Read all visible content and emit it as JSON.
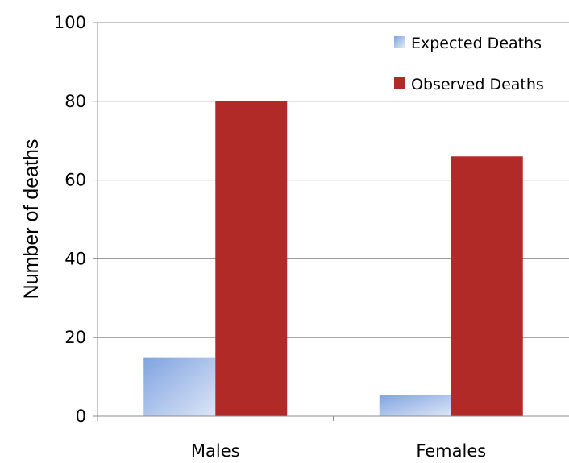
{
  "chart_data": {
    "type": "bar",
    "ylabel": "Number of deaths",
    "xlabel": "",
    "categories": [
      "Males",
      "Females"
    ],
    "ylim": [
      0,
      100
    ],
    "yticks": [
      0,
      20,
      40,
      60,
      80,
      100
    ],
    "grid": true,
    "legend_position": "top-right",
    "series": [
      {
        "name": "Expected Deaths",
        "values": [
          15,
          5.5
        ],
        "color": "#9bb8e6"
      },
      {
        "name": "Observed Deaths",
        "values": [
          80,
          66
        ],
        "color": "#b12a27"
      }
    ]
  }
}
